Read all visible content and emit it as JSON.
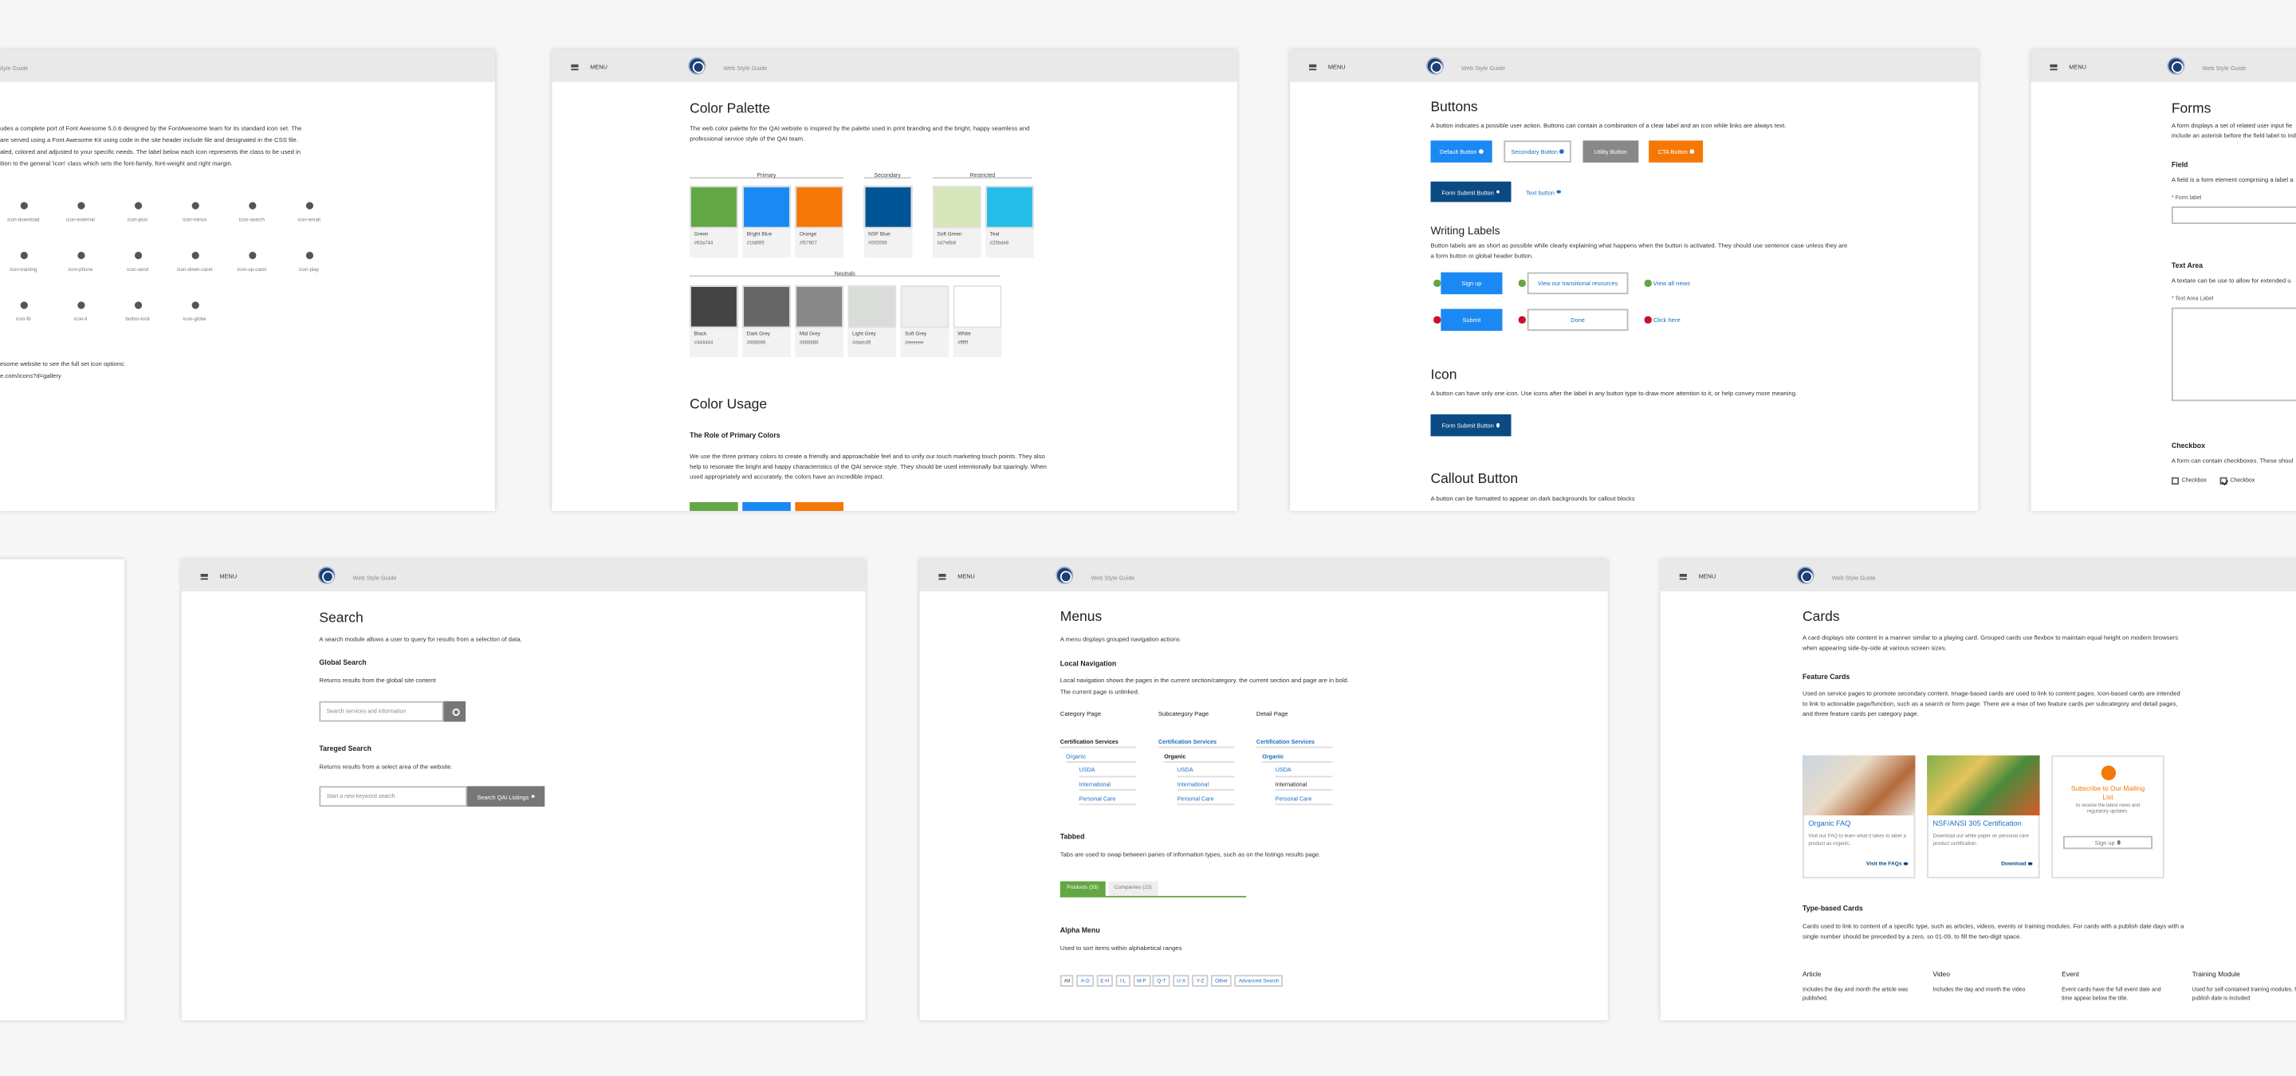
{
  "icons_page": {
    "site": "Style Guide",
    "intro": [
      "udes a complete port of Font Awesome 5.0.6 designed by the FontAwesome team for its standard icon set. The",
      "are served using a Font Awesome Kit using code in the site header include file and designated in the CSS file.",
      "aled, colored and adjusted to your specific needs. The label below each icon represents the class to be used in",
      "ition to the general 'icon' class which sets the font-family, font-weight and right margin."
    ],
    "icons": [
      "icon-download",
      "icon-external",
      "icon-plus",
      "icon-minus",
      "icon-search",
      "icon-email",
      "icon-training",
      "icon-phone",
      "icon-send",
      "icon-down-caret",
      "icon-up-caret",
      "icon-play",
      "icon-fb",
      "icon-li",
      "button-lock",
      "icon-globe"
    ],
    "outro": [
      "esome website to see the full set icon options:",
      "e.com/icons?d=gallery"
    ]
  },
  "colors_page": {
    "menu": "MENU",
    "site": "Web Style Guide",
    "title": "Color Palette",
    "intro": "The web color palette for the QAI website is inspired by the palette used in print branding and the bright, happy seamless and professional service style of the QAI team.",
    "groups": [
      {
        "name": "Primary",
        "swatches": [
          {
            "name": "Green",
            "hex": "#63a744"
          },
          {
            "name": "Bright Blue",
            "hex": "#1b89f3"
          },
          {
            "name": "Orange",
            "hex": "#f57807"
          }
        ]
      },
      {
        "name": "Secondary",
        "swatches": [
          {
            "name": "NSF Blue",
            "hex": "#005596"
          }
        ]
      },
      {
        "name": "Restricted",
        "swatches": [
          {
            "name": "Soft Green",
            "hex": "#d7e6b8"
          },
          {
            "name": "Teal",
            "hex": "#25bde8"
          }
        ]
      },
      {
        "name": "Neutrals",
        "swatches": [
          {
            "name": "Black",
            "hex": "#444444"
          },
          {
            "name": "Dark Grey",
            "hex": "#666666"
          },
          {
            "name": "Mid Grey",
            "hex": "#888888"
          },
          {
            "name": "Light Grey",
            "hex": "#dadcd9"
          },
          {
            "name": "Soft Grey",
            "hex": "#eeeeee"
          },
          {
            "name": "White",
            "hex": "#ffffff"
          }
        ]
      }
    ],
    "usage_title": "Color Usage",
    "role_title": "The Role of Primary Colors",
    "role_text": "We use the three primary colors to create a friendly and approachable feel and to unify our touch marketing touch points. They also help to resonate the bright and happy characteristics of the QAI service style. They should be used intentionally but sparingly. When used appropriately and accurately, the colors have an incredible impact."
  },
  "buttons_page": {
    "menu": "MENU",
    "site": "Web Style Guide",
    "title": "Buttons",
    "intro": "A button indicates a possible user action. Buttons can contain a combination of a clear label and an icon while links are always text.",
    "buttons": [
      "Default Button",
      "Secondary Button",
      "Utility Button",
      "CTA Button",
      "Form Submit Button",
      "Text button"
    ],
    "labels_title": "Writing Labels",
    "labels_intro": "Button labels are as short as possible while clearly explaining what happens when the button is activated. They should use sentence case unless they are a form button or global header button.",
    "good": [
      "Sign up",
      "View our transitional resources",
      "View all news"
    ],
    "bad": [
      "Submit",
      "Done",
      "Click here"
    ],
    "icon_title": "Icon",
    "icon_intro": "A button can have only one icon. Use icons after the label in any button type to draw more attention to it, or help convey more meaning.",
    "icon_button": "Form Submit Button",
    "callout_title": "Callout Button",
    "callout_intro": "A button can be formatted to appear on dark backgrounds for callout blocks"
  },
  "forms_page": {
    "menu": "MENU",
    "site": "Web Style Guide",
    "title": "Forms",
    "intro": [
      "A form displays a set of related user input fie",
      "include an asterisk before the field label to ind"
    ],
    "field_title": "Field",
    "field_intro": "A field is a form element comprising a label a",
    "field_label": "* Form label",
    "textarea_title": "Text Area",
    "textarea_intro": "A textare can be use to allow for extended u",
    "textarea_label": "* Text Area Label",
    "checkbox_title": "Checkbox",
    "checkbox_intro": "A form can contain checkboxes. These shoul",
    "checkboxes": [
      "Checkbox",
      "Checkbox"
    ]
  },
  "search_page": {
    "menu": "MENU",
    "site": "Web Style Guide",
    "title": "Search",
    "intro": "A search module allows a user to query for results from a selection of data.",
    "global_title": "Global Search",
    "global_intro": "Returns results from the global site content",
    "global_placeholder": "Search services and information",
    "targeted_title": "Tareged Search",
    "targeted_intro": "Returns results from a select area of the website.",
    "targeted_placeholder": "Start a new keyword search",
    "targeted_button": "Search QAI Listings"
  },
  "menus_page": {
    "menu": "MENU",
    "site": "Web Style Guide",
    "title": "Menus",
    "intro": "A menu displays grouped navigation actions",
    "local_title": "Local Navigation",
    "local_intro": [
      "Local navigation shows the pages in the current section/category. the current section and page are in bold.",
      "The current page is unlinked."
    ],
    "columns": [
      {
        "heading": "Category Page",
        "items": [
          {
            "text": "Certification Services",
            "state": "current"
          },
          {
            "text": "Organic",
            "state": "link"
          },
          {
            "text": "USDA",
            "state": "link"
          },
          {
            "text": "International",
            "state": "link"
          },
          {
            "text": "Personal Care",
            "state": "link"
          }
        ]
      },
      {
        "heading": "Subcategory Page",
        "items": [
          {
            "text": "Certification Services",
            "state": "section"
          },
          {
            "text": "Organic",
            "state": "current"
          },
          {
            "text": "USDA",
            "state": "link"
          },
          {
            "text": "International",
            "state": "link"
          },
          {
            "text": "Personal Care",
            "state": "link"
          }
        ]
      },
      {
        "heading": "Detail Page",
        "items": [
          {
            "text": "Certification Services",
            "state": "section"
          },
          {
            "text": "Organic",
            "state": "section"
          },
          {
            "text": "USDA",
            "state": "link"
          },
          {
            "text": "International",
            "state": "page"
          },
          {
            "text": "Personal Care",
            "state": "link"
          }
        ]
      }
    ],
    "tabbed_title": "Tabbed",
    "tabbed_intro": "Tabs are used to swap between panes of information types, such as on the listings results page.",
    "tabs": [
      "Products (33)",
      "Companies (22)"
    ],
    "alpha_title": "Alpha Menu",
    "alpha_intro": "Used to sort items within alphabetical ranges",
    "alpha": [
      "All",
      "A-D",
      "E-H",
      "I-L",
      "M-P",
      "Q-T",
      "U-X",
      "Y-Z",
      "Other",
      "Advanced Search"
    ]
  },
  "cards_page": {
    "menu": "MENU",
    "site": "Web Style Guide",
    "title": "Cards",
    "intro": "A card displays site content in a manner similar to a playing card. Grouped cards use flexbox to maintain equal height on modern browsers when appearing side-by-side at various screen sizes.",
    "feature_title": "Feature Cards",
    "feature_intro": "Used on service pages to promote secondary content. Image-based cards are used to link to content pages. Icon-based cards are intended to link to actionable page/function, such as a search or form page. There are a max of two feature cards per subcategory and detail pages, and three feature cards per category page.",
    "feature_cards": [
      {
        "title": "Organic FAQ",
        "text": "Visit our FAQ to learn what it takes to label a product as organic.",
        "link": "Visit the FAQs"
      },
      {
        "title": "NSF/ANSI 305 Certification",
        "text": "Download our white paper on personal care product certification.",
        "link": "Download"
      },
      {
        "title": "Subscribe to Our Mailing List",
        "text": "to receive the latest news and regulatory updates.",
        "link": "Sign up"
      }
    ],
    "type_title": "Type-based Cards",
    "type_intro": "Cards used to link to content of a specific type, such as articles, videos, events or training modules. For cards with a publish date days with a single number should be preceded by a zero, so 01-09, to fill the two-digit space.",
    "types": [
      {
        "title": "Article",
        "text": "Includes the day and month the article was published."
      },
      {
        "title": "Video",
        "text": "Includes the day and month the video"
      },
      {
        "title": "Event",
        "text": "Event cards have the full event date and time appear below the title."
      },
      {
        "title": "Training Module",
        "text": "Used for self-contained training modules. No publish date is included"
      }
    ]
  }
}
